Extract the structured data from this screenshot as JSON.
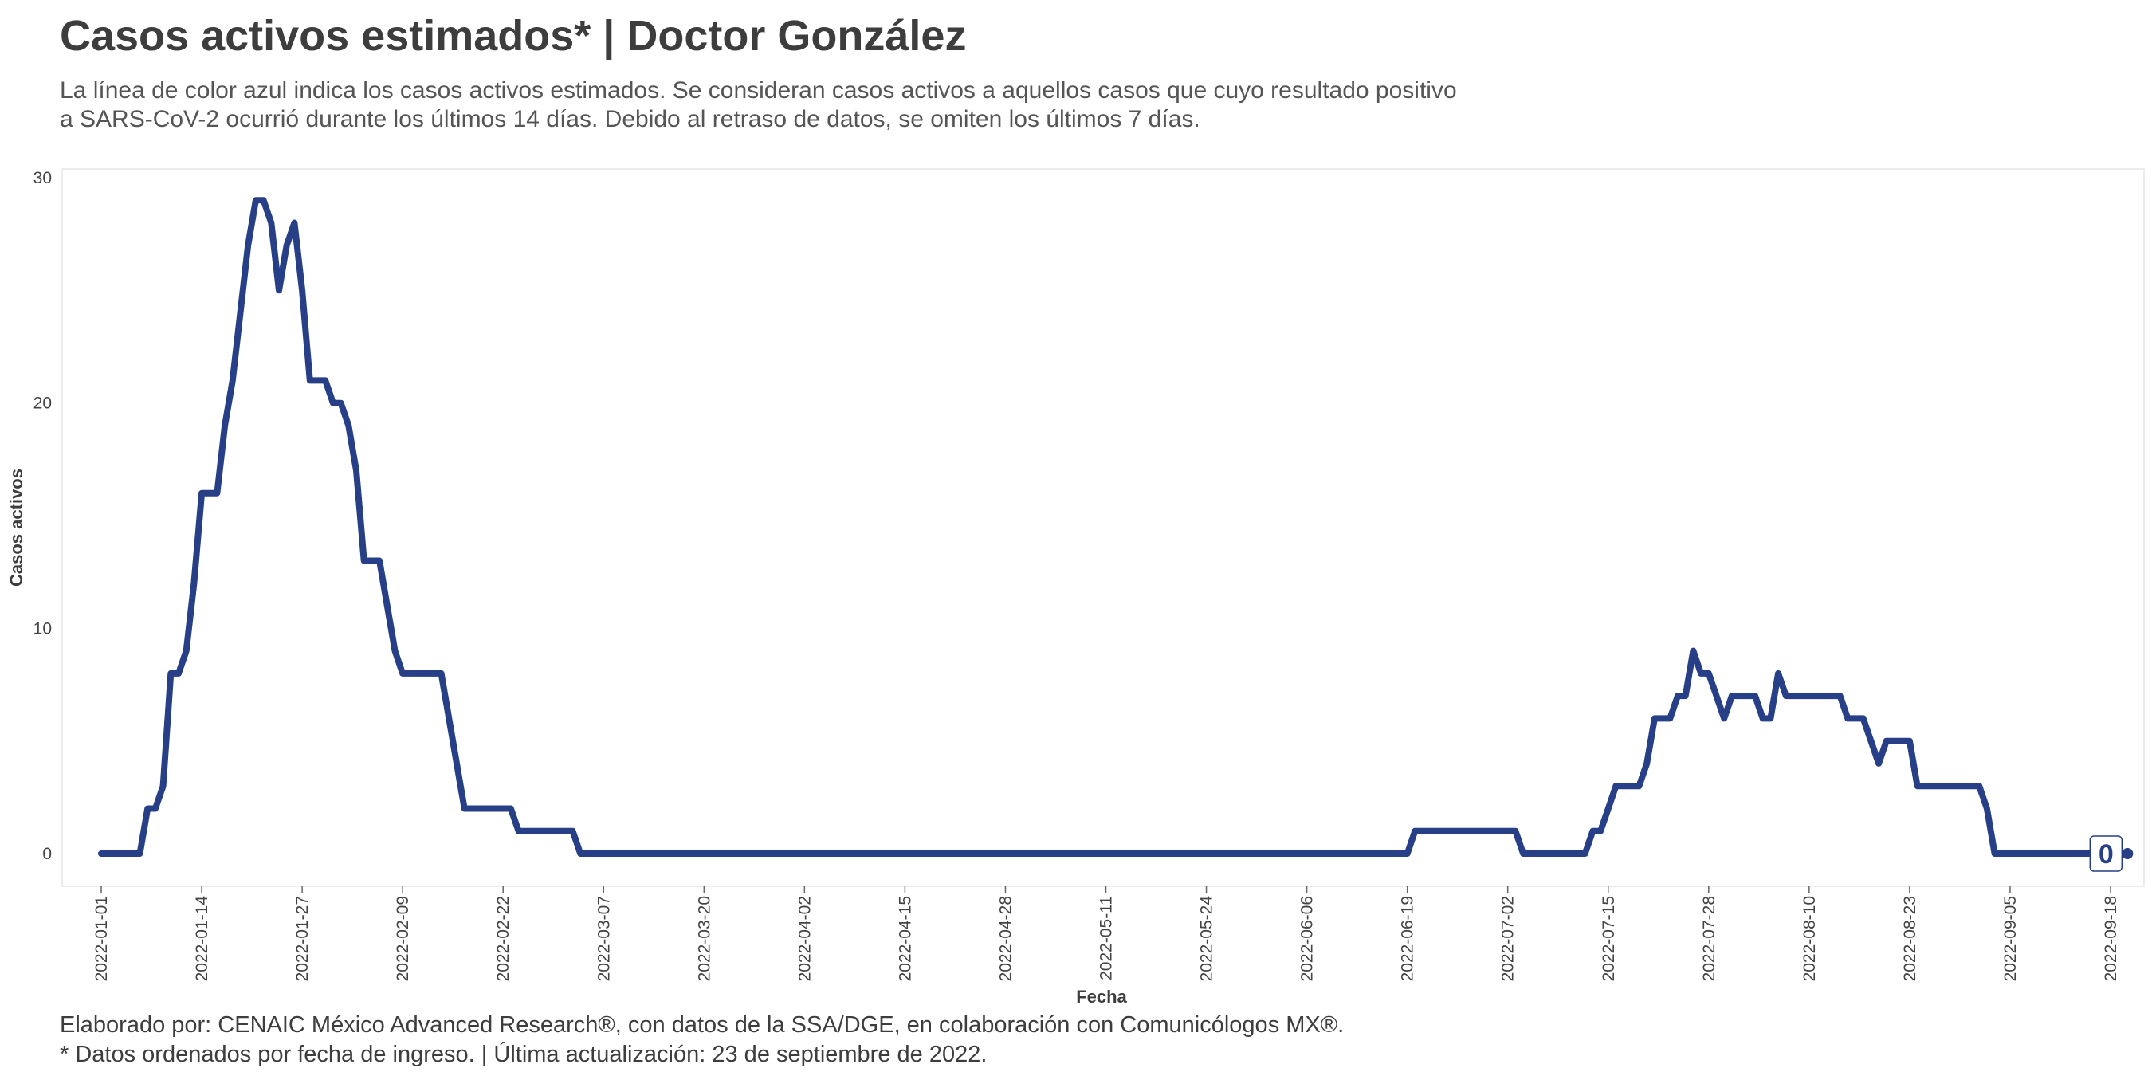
{
  "title": "Casos activos estimados* | Doctor González",
  "subtitle": [
    "La línea de color azul indica los casos activos estimados. Se consideran casos activos a aquellos casos que cuyo resultado positivo",
    "a SARS-CoV-2 ocurrió durante los últimos 14 días. Debido al retraso de datos, se omiten los últimos 7 días."
  ],
  "caption": [
    "Elaborado por: CENAIC México Advanced Research®, con datos de la SSA/DGE, en colaboración con Comunicólogos MX®.",
    "* Datos ordenados por fecha de ingreso. | Última actualización: 23 de septiembre de 2022."
  ],
  "colors": {
    "line": "#273f87",
    "text": "#3d3d3d",
    "panel_border": "#e6e6e6"
  },
  "chart_data": {
    "type": "line",
    "xlabel": "Fecha",
    "ylabel": "Casos activos",
    "x_range": [
      "2021-12-25",
      "2022-09-19"
    ],
    "ylim": [
      -1.5,
      30
    ],
    "yticks": [
      0,
      10,
      20,
      30
    ],
    "xticks": [
      "2022-01-01",
      "2022-01-14",
      "2022-01-27",
      "2022-02-09",
      "2022-02-22",
      "2022-03-07",
      "2022-03-20",
      "2022-04-02",
      "2022-04-15",
      "2022-04-28",
      "2022-05-11",
      "2022-05-24",
      "2022-06-06",
      "2022-06-19",
      "2022-07-02",
      "2022-07-15",
      "2022-07-28",
      "2022-08-10",
      "2022-08-23",
      "2022-09-05",
      "2022-09-18"
    ],
    "grid": false,
    "end_label": "0",
    "series": [
      {
        "points": [
          [
            "2022-01-01",
            0
          ],
          [
            "2022-01-06",
            0
          ],
          [
            "2022-01-07",
            2
          ],
          [
            "2022-01-08",
            2
          ],
          [
            "2022-01-09",
            3
          ],
          [
            "2022-01-10",
            8
          ],
          [
            "2022-01-11",
            8
          ],
          [
            "2022-01-12",
            9
          ],
          [
            "2022-01-13",
            12
          ],
          [
            "2022-01-14",
            16
          ],
          [
            "2022-01-16",
            16
          ],
          [
            "2022-01-17",
            19
          ],
          [
            "2022-01-18",
            21
          ],
          [
            "2022-01-19",
            24
          ],
          [
            "2022-01-20",
            27
          ],
          [
            "2022-01-21",
            29
          ],
          [
            "2022-01-22",
            29
          ],
          [
            "2022-01-23",
            28
          ],
          [
            "2022-01-24",
            25
          ],
          [
            "2022-01-25",
            27
          ],
          [
            "2022-01-26",
            28
          ],
          [
            "2022-01-27",
            25
          ],
          [
            "2022-01-28",
            21
          ],
          [
            "2022-01-30",
            21
          ],
          [
            "2022-01-31",
            20
          ],
          [
            "2022-02-01",
            20
          ],
          [
            "2022-02-02",
            19
          ],
          [
            "2022-02-03",
            17
          ],
          [
            "2022-02-04",
            13
          ],
          [
            "2022-02-06",
            13
          ],
          [
            "2022-02-07",
            11
          ],
          [
            "2022-02-08",
            9
          ],
          [
            "2022-02-09",
            8
          ],
          [
            "2022-02-14",
            8
          ],
          [
            "2022-02-15",
            6
          ],
          [
            "2022-02-16",
            4
          ],
          [
            "2022-02-17",
            2
          ],
          [
            "2022-02-23",
            2
          ],
          [
            "2022-02-24",
            1
          ],
          [
            "2022-03-03",
            1
          ],
          [
            "2022-03-04",
            0
          ],
          [
            "2022-06-19",
            0
          ],
          [
            "2022-06-20",
            1
          ],
          [
            "2022-07-03",
            1
          ],
          [
            "2022-07-04",
            0
          ],
          [
            "2022-07-12",
            0
          ],
          [
            "2022-07-13",
            1
          ],
          [
            "2022-07-14",
            1
          ],
          [
            "2022-07-15",
            2
          ],
          [
            "2022-07-16",
            3
          ],
          [
            "2022-07-19",
            3
          ],
          [
            "2022-07-20",
            4
          ],
          [
            "2022-07-21",
            6
          ],
          [
            "2022-07-23",
            6
          ],
          [
            "2022-07-24",
            7
          ],
          [
            "2022-07-25",
            7
          ],
          [
            "2022-07-26",
            9
          ],
          [
            "2022-07-27",
            8
          ],
          [
            "2022-07-28",
            8
          ],
          [
            "2022-07-29",
            7
          ],
          [
            "2022-07-30",
            6
          ],
          [
            "2022-07-31",
            7
          ],
          [
            "2022-08-03",
            7
          ],
          [
            "2022-08-04",
            6
          ],
          [
            "2022-08-05",
            6
          ],
          [
            "2022-08-06",
            8
          ],
          [
            "2022-08-07",
            7
          ],
          [
            "2022-08-14",
            7
          ],
          [
            "2022-08-15",
            6
          ],
          [
            "2022-08-17",
            6
          ],
          [
            "2022-08-18",
            5
          ],
          [
            "2022-08-19",
            4
          ],
          [
            "2022-08-20",
            5
          ],
          [
            "2022-08-23",
            5
          ],
          [
            "2022-08-24",
            3
          ],
          [
            "2022-09-01",
            3
          ],
          [
            "2022-09-02",
            2
          ],
          [
            "2022-09-03",
            0
          ],
          [
            "2022-09-17",
            0
          ]
        ]
      }
    ]
  }
}
